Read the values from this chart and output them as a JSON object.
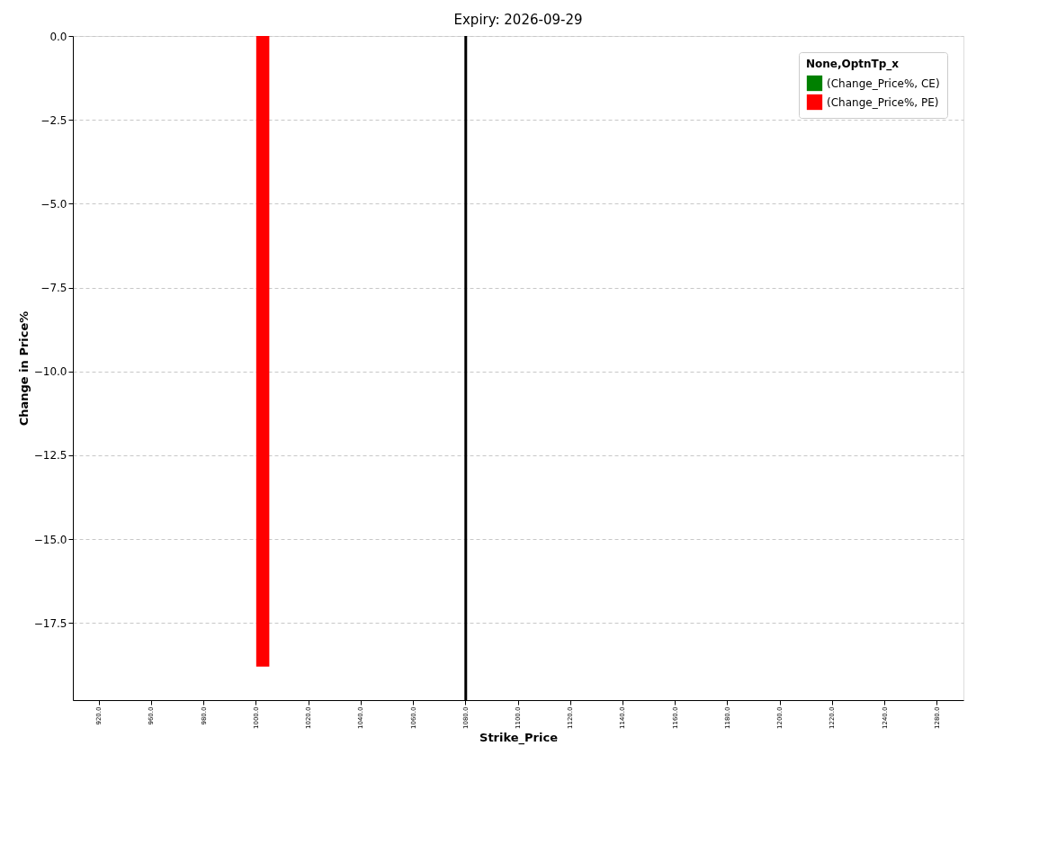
{
  "chart_data": {
    "type": "bar",
    "title": "Expiry: 2026-09-29",
    "xlabel": "Strike_Price",
    "ylabel": "Change in Price%",
    "legend_title": "None,OptnTp_x",
    "categories": [
      "920.0",
      "960.0",
      "980.0",
      "1000.0",
      "1020.0",
      "1040.0",
      "1060.0",
      "1080.0",
      "1100.0",
      "1120.0",
      "1140.0",
      "1160.0",
      "1180.0",
      "1200.0",
      "1220.0",
      "1240.0",
      "1280.0"
    ],
    "series": [
      {
        "name": "(Change_Price%, CE)",
        "color": "#008000",
        "values": [
          null,
          null,
          null,
          null,
          null,
          null,
          null,
          null,
          null,
          null,
          null,
          null,
          null,
          null,
          null,
          null,
          null
        ]
      },
      {
        "name": "(Change_Price%, PE)",
        "color": "#ff0000",
        "values": [
          null,
          null,
          null,
          -18.8,
          null,
          null,
          null,
          null,
          null,
          null,
          null,
          null,
          null,
          null,
          null,
          null,
          null
        ]
      }
    ],
    "ylim": [
      -19.8,
      0
    ],
    "yticks": [
      {
        "value": 0,
        "label": "0.0"
      },
      {
        "value": -2.5,
        "label": "−2.5"
      },
      {
        "value": -5,
        "label": "−5.0"
      },
      {
        "value": -7.5,
        "label": "−7.5"
      },
      {
        "value": -10,
        "label": "−10.0"
      },
      {
        "value": -12.5,
        "label": "−12.5"
      },
      {
        "value": -15,
        "label": "−15.0"
      },
      {
        "value": -17.5,
        "label": "−17.5"
      }
    ],
    "ref_lines": [
      {
        "axis": "x",
        "value": "1080.0",
        "color": "#000000",
        "line_style": "solid"
      }
    ],
    "grid": "y",
    "legend": "top right"
  }
}
